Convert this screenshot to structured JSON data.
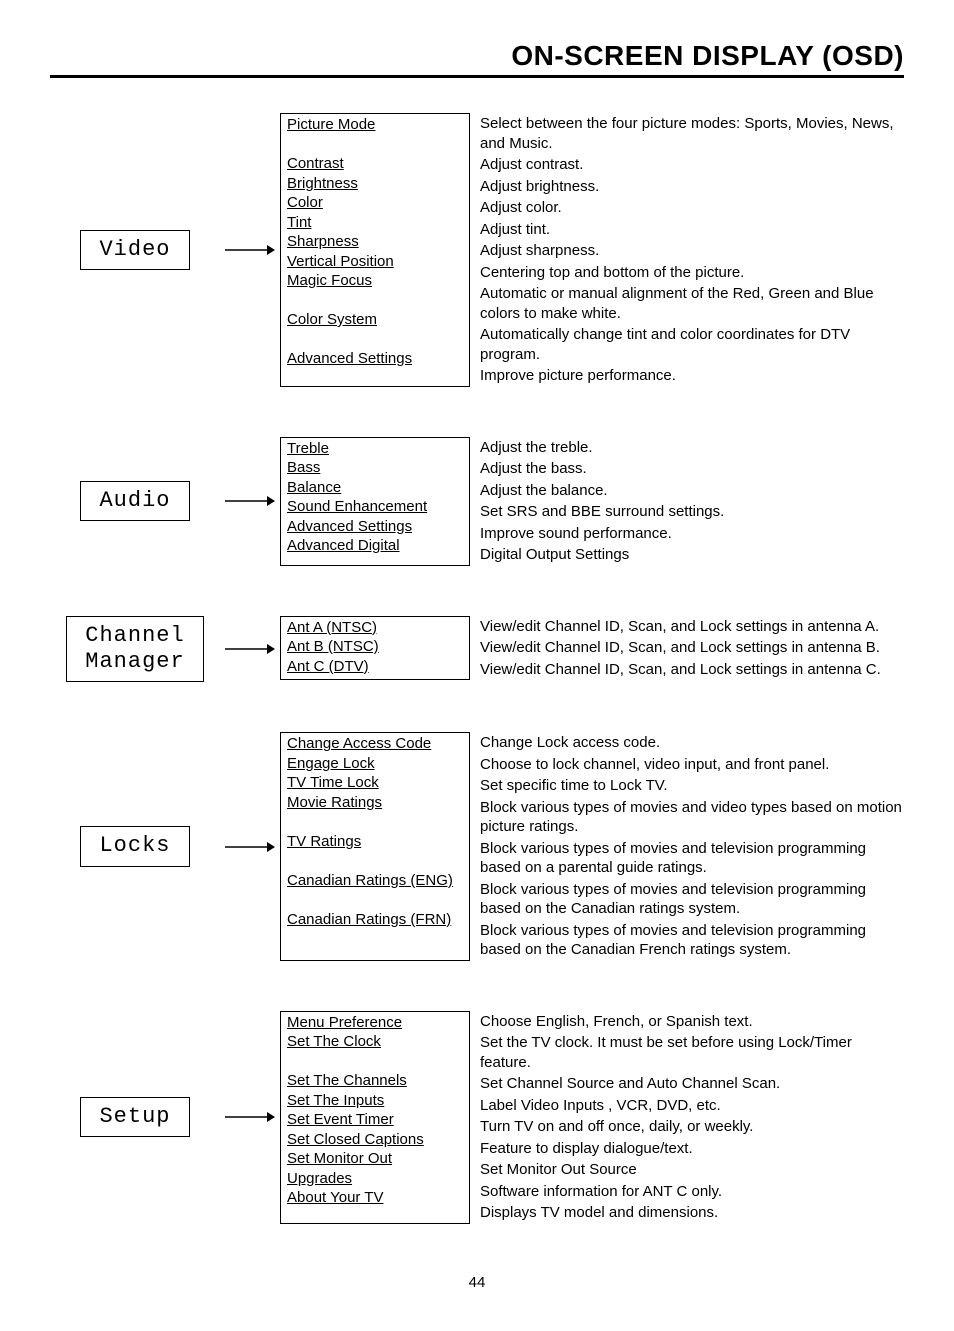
{
  "header": {
    "title": "ON-SCREEN DISPLAY (OSD)"
  },
  "pageNumber": "44",
  "sections": [
    {
      "category": "Video",
      "items": [
        {
          "name": "Picture Mode",
          "desc": "Select between the four picture modes: Sports, Movies, News, and Music."
        },
        {
          "name": "Contrast",
          "desc": "Adjust contrast."
        },
        {
          "name": "Brightness",
          "desc": "Adjust brightness."
        },
        {
          "name": "Color",
          "desc": "Adjust color."
        },
        {
          "name": "Tint",
          "desc": "Adjust tint."
        },
        {
          "name": "Sharpness",
          "desc": "Adjust sharpness."
        },
        {
          "name": "Vertical Position",
          "desc": "Centering top and bottom of the picture."
        },
        {
          "name": "Magic Focus",
          "desc": "Automatic or manual alignment of the Red, Green and Blue colors to make white."
        },
        {
          "name": "Color System",
          "desc": "Automatically change tint and color coordinates for DTV program."
        },
        {
          "name": "Advanced Settings",
          "desc": "Improve picture performance."
        }
      ]
    },
    {
      "category": "Audio",
      "items": [
        {
          "name": "Treble",
          "desc": "Adjust the treble."
        },
        {
          "name": "Bass",
          "desc": "Adjust the bass."
        },
        {
          "name": "Balance",
          "desc": "Adjust the balance."
        },
        {
          "name": "Sound Enhancement",
          "desc": "Set SRS and BBE surround settings."
        },
        {
          "name": "Advanced Settings",
          "desc": "Improve sound performance."
        },
        {
          "name": "Advanced Digital",
          "desc": "Digital Output Settings"
        }
      ]
    },
    {
      "category": "Channel\nManager",
      "items": [
        {
          "name": "Ant A (NTSC)",
          "desc": "View/edit Channel ID, Scan, and Lock settings in antenna A."
        },
        {
          "name": "Ant B (NTSC)",
          "desc": "View/edit Channel ID, Scan, and Lock settings in antenna B."
        },
        {
          "name": "Ant C (DTV)",
          "desc": "View/edit Channel ID, Scan, and Lock settings in antenna C."
        }
      ]
    },
    {
      "category": "Locks",
      "items": [
        {
          "name": "Change Access Code",
          "desc": "Change Lock access code."
        },
        {
          "name": "Engage Lock",
          "desc": "Choose to lock channel, video input, and front panel."
        },
        {
          "name": "TV Time Lock",
          "desc": "Set specific time to Lock TV."
        },
        {
          "name": "Movie Ratings",
          "desc": "Block various types of movies and video types based on motion picture ratings."
        },
        {
          "name": "TV Ratings",
          "desc": "Block various types of movies and television programming based on a parental guide ratings."
        },
        {
          "name": "Canadian Ratings (ENG)",
          "desc": "Block various types of movies and television programming based on the Canadian ratings system."
        },
        {
          "name": "Canadian Ratings (FRN)",
          "desc": "Block various types of movies and television programming based on the Canadian French ratings system."
        }
      ]
    },
    {
      "category": "Setup",
      "items": [
        {
          "name": "Menu Preference",
          "desc": "Choose English, French, or Spanish text."
        },
        {
          "name": "Set The Clock",
          "desc": "Set the TV clock.  It must be set before using Lock/Timer feature."
        },
        {
          "name": "Set The Channels",
          "desc": "Set Channel Source and Auto Channel Scan."
        },
        {
          "name": "Set The Inputs",
          "desc": "Label Video Inputs , VCR, DVD, etc."
        },
        {
          "name": "Set Event Timer",
          "desc": "Turn TV on and off once, daily, or weekly."
        },
        {
          "name": "Set Closed Captions",
          "desc": "Feature to display dialogue/text."
        },
        {
          "name": "Set Monitor Out",
          "desc": "Set Monitor Out Source"
        },
        {
          "name": "Upgrades",
          "desc": "Software information for ANT C only."
        },
        {
          "name": "About Your TV",
          "desc": "Displays TV model and dimensions."
        }
      ]
    }
  ]
}
